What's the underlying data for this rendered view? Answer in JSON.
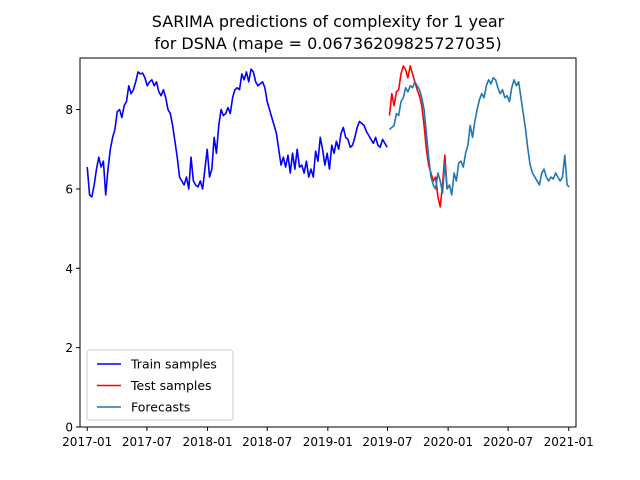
{
  "chart_data": {
    "type": "line",
    "title": "SARIMA predictions of complexity for 1 year",
    "subtitle": "for DSNA (mape = 0.06736209825727035)",
    "xlabel": "",
    "ylabel": "",
    "xlim": [
      "2016-12-10",
      "2021-01-23"
    ],
    "ylim": [
      0,
      9.3
    ],
    "x_ticks": [
      "2017-01",
      "2017-07",
      "2018-01",
      "2018-07",
      "2019-01",
      "2019-07",
      "2020-01",
      "2020-07",
      "2021-01"
    ],
    "y_ticks": [
      "0",
      "2",
      "4",
      "6",
      "8"
    ],
    "grid": false,
    "legend_position": "lower-left",
    "series": [
      {
        "name": "Train samples",
        "color": "#0000ff",
        "x": [
          "2017-01-01",
          "2017-01-08",
          "2017-01-15",
          "2017-01-22",
          "2017-01-29",
          "2017-02-05",
          "2017-02-12",
          "2017-02-19",
          "2017-02-26",
          "2017-03-05",
          "2017-03-12",
          "2017-03-19",
          "2017-03-26",
          "2017-04-02",
          "2017-04-09",
          "2017-04-16",
          "2017-04-23",
          "2017-04-30",
          "2017-05-07",
          "2017-05-14",
          "2017-05-21",
          "2017-05-28",
          "2017-06-04",
          "2017-06-11",
          "2017-06-18",
          "2017-06-25",
          "2017-07-02",
          "2017-07-09",
          "2017-07-16",
          "2017-07-23",
          "2017-07-30",
          "2017-08-06",
          "2017-08-13",
          "2017-08-20",
          "2017-08-27",
          "2017-09-03",
          "2017-09-10",
          "2017-09-17",
          "2017-09-24",
          "2017-10-01",
          "2017-10-08",
          "2017-10-15",
          "2017-10-22",
          "2017-10-29",
          "2017-11-05",
          "2017-11-12",
          "2017-11-19",
          "2017-11-26",
          "2017-12-03",
          "2017-12-10",
          "2017-12-17",
          "2017-12-24",
          "2017-12-31",
          "2018-01-07",
          "2018-01-14",
          "2018-01-21",
          "2018-01-28",
          "2018-02-04",
          "2018-02-11",
          "2018-02-18",
          "2018-02-25",
          "2018-03-04",
          "2018-03-11",
          "2018-03-18",
          "2018-03-25",
          "2018-04-01",
          "2018-04-08",
          "2018-04-15",
          "2018-04-22",
          "2018-04-29",
          "2018-05-06",
          "2018-05-13",
          "2018-05-20",
          "2018-05-27",
          "2018-06-03",
          "2018-06-10",
          "2018-06-17",
          "2018-06-24",
          "2018-07-01",
          "2018-07-08",
          "2018-07-15",
          "2018-07-22",
          "2018-07-29",
          "2018-08-05",
          "2018-08-12",
          "2018-08-19",
          "2018-08-26",
          "2018-09-02",
          "2018-09-09",
          "2018-09-16",
          "2018-09-23",
          "2018-09-30",
          "2018-10-07",
          "2018-10-14",
          "2018-10-21",
          "2018-10-28",
          "2018-11-04",
          "2018-11-11",
          "2018-11-18",
          "2018-11-25",
          "2018-12-02",
          "2018-12-09",
          "2018-12-16",
          "2018-12-23",
          "2018-12-30",
          "2019-01-06",
          "2019-01-13",
          "2019-01-20",
          "2019-01-27",
          "2019-02-03",
          "2019-02-10",
          "2019-02-17",
          "2019-02-24",
          "2019-03-03",
          "2019-03-10",
          "2019-03-17",
          "2019-03-24",
          "2019-03-31",
          "2019-04-07",
          "2019-04-14",
          "2019-04-21",
          "2019-04-28",
          "2019-05-05",
          "2019-05-12",
          "2019-05-19",
          "2019-05-26",
          "2019-06-02",
          "2019-06-09",
          "2019-06-16",
          "2019-06-23",
          "2019-06-30"
        ],
        "y": [
          6.55,
          5.85,
          5.8,
          6.1,
          6.5,
          6.8,
          6.55,
          6.7,
          5.85,
          6.5,
          7.0,
          7.3,
          7.5,
          7.95,
          8.0,
          7.8,
          8.1,
          8.2,
          8.6,
          8.4,
          8.5,
          8.7,
          8.95,
          8.9,
          8.92,
          8.8,
          8.6,
          8.7,
          8.75,
          8.6,
          8.7,
          8.45,
          8.35,
          8.5,
          8.3,
          8.0,
          7.9,
          7.6,
          7.2,
          6.8,
          6.3,
          6.2,
          6.1,
          6.3,
          6.0,
          6.8,
          6.2,
          6.1,
          6.05,
          6.2,
          6.0,
          6.5,
          7.0,
          6.3,
          6.5,
          7.3,
          6.9,
          7.6,
          8.0,
          7.85,
          7.9,
          8.05,
          7.9,
          8.3,
          8.5,
          8.55,
          8.5,
          8.9,
          8.75,
          8.95,
          8.7,
          9.02,
          8.95,
          8.7,
          8.6,
          8.65,
          8.7,
          8.55,
          8.2,
          8.0,
          7.8,
          7.6,
          7.4,
          7.0,
          6.6,
          6.8,
          6.55,
          6.85,
          6.4,
          6.9,
          6.5,
          7.0,
          6.55,
          6.6,
          6.4,
          6.7,
          6.3,
          6.5,
          6.3,
          6.95,
          6.7,
          7.3,
          7.0,
          6.6,
          6.9,
          6.5,
          7.1,
          6.9,
          7.2,
          7.0,
          7.4,
          7.55,
          7.3,
          7.25,
          7.05,
          7.1,
          7.3,
          7.55,
          7.7,
          7.65,
          7.6,
          7.45,
          7.35,
          7.25,
          7.15,
          7.3,
          7.1,
          7.05,
          7.25,
          7.15,
          7.05
        ]
      },
      {
        "name": "Test samples",
        "color": "#ff0000",
        "x": [
          "2019-07-07",
          "2019-07-14",
          "2019-07-21",
          "2019-07-28",
          "2019-08-04",
          "2019-08-11",
          "2019-08-18",
          "2019-08-25",
          "2019-09-01",
          "2019-09-08",
          "2019-09-15",
          "2019-09-22",
          "2019-09-29",
          "2019-10-06",
          "2019-10-13",
          "2019-10-20",
          "2019-10-27",
          "2019-11-03",
          "2019-11-10",
          "2019-11-17",
          "2019-11-24",
          "2019-12-01",
          "2019-12-08",
          "2019-12-15",
          "2019-12-22",
          "2019-12-29"
        ],
        "y": [
          7.85,
          8.4,
          8.1,
          8.45,
          8.5,
          8.9,
          9.1,
          9.0,
          8.8,
          9.1,
          8.9,
          8.7,
          8.5,
          8.35,
          8.1,
          7.6,
          7.0,
          6.6,
          6.4,
          6.2,
          6.3,
          5.8,
          5.55,
          6.1,
          6.85,
          6.0
        ]
      },
      {
        "name": "Forecasts",
        "color": "#1f77b4",
        "x": [
          "2019-07-07",
          "2019-07-14",
          "2019-07-21",
          "2019-07-28",
          "2019-08-04",
          "2019-08-11",
          "2019-08-18",
          "2019-08-25",
          "2019-09-01",
          "2019-09-08",
          "2019-09-15",
          "2019-09-22",
          "2019-09-29",
          "2019-10-06",
          "2019-10-13",
          "2019-10-20",
          "2019-10-27",
          "2019-11-03",
          "2019-11-10",
          "2019-11-17",
          "2019-11-24",
          "2019-12-01",
          "2019-12-08",
          "2019-12-15",
          "2019-12-22",
          "2019-12-29",
          "2020-01-05",
          "2020-01-12",
          "2020-01-19",
          "2020-01-26",
          "2020-02-02",
          "2020-02-09",
          "2020-02-16",
          "2020-02-23",
          "2020-03-01",
          "2020-03-08",
          "2020-03-15",
          "2020-03-22",
          "2020-03-29",
          "2020-04-05",
          "2020-04-12",
          "2020-04-19",
          "2020-04-26",
          "2020-05-03",
          "2020-05-10",
          "2020-05-17",
          "2020-05-24",
          "2020-05-31",
          "2020-06-07",
          "2020-06-14",
          "2020-06-21",
          "2020-06-28",
          "2020-07-05",
          "2020-07-12",
          "2020-07-19",
          "2020-07-26",
          "2020-08-02",
          "2020-08-09",
          "2020-08-16",
          "2020-08-23",
          "2020-08-30",
          "2020-09-06",
          "2020-09-13",
          "2020-09-20",
          "2020-09-27",
          "2020-10-04",
          "2020-10-11",
          "2020-10-18",
          "2020-10-25",
          "2020-11-01",
          "2020-11-08",
          "2020-11-15",
          "2020-11-22",
          "2020-11-29",
          "2020-12-06",
          "2020-12-13",
          "2020-12-20",
          "2020-12-27",
          "2021-01-03"
        ],
        "y": [
          7.5,
          7.55,
          7.6,
          7.9,
          7.85,
          8.2,
          8.3,
          8.55,
          8.45,
          8.6,
          8.55,
          8.7,
          8.6,
          8.5,
          8.3,
          8.0,
          7.4,
          6.8,
          6.3,
          6.1,
          6.0,
          6.4,
          6.2,
          5.9,
          6.65,
          6.0,
          6.1,
          5.85,
          6.4,
          6.2,
          6.65,
          6.7,
          6.55,
          6.9,
          7.1,
          7.6,
          7.3,
          7.7,
          8.0,
          8.25,
          8.4,
          8.3,
          8.6,
          8.75,
          8.65,
          8.8,
          8.75,
          8.55,
          8.4,
          8.5,
          8.3,
          8.35,
          8.2,
          8.55,
          8.75,
          8.6,
          8.7,
          8.3,
          7.9,
          7.5,
          7.0,
          6.6,
          6.4,
          6.3,
          6.2,
          6.1,
          6.4,
          6.5,
          6.3,
          6.2,
          6.3,
          6.25,
          6.4,
          6.3,
          6.2,
          6.3,
          6.85,
          6.1,
          6.05
        ]
      }
    ]
  }
}
